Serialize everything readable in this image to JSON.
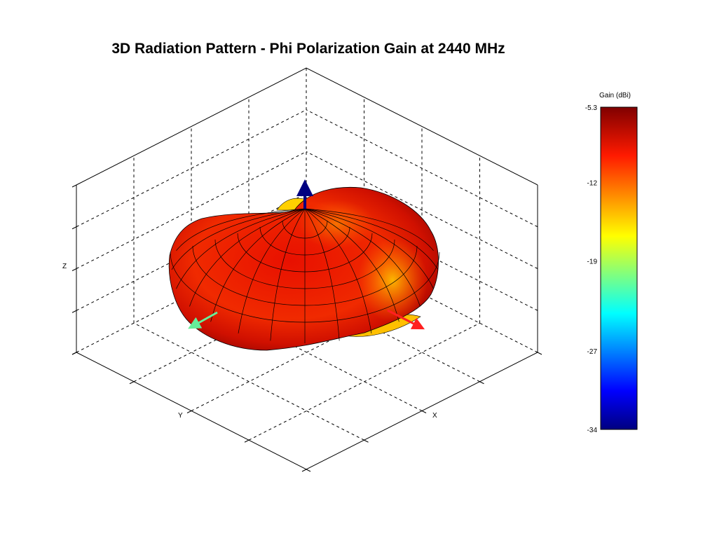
{
  "chart_data": {
    "type": "surface",
    "title": "3D Radiation Pattern - Phi Polarization Gain at 2440 MHz",
    "xlabel": "X",
    "ylabel": "Y",
    "zlabel": "Z",
    "grid": true,
    "colorbar": {
      "title": "Gain (dBi)",
      "range": [
        -34,
        -5.3
      ],
      "ticks": [
        "-5.3",
        "-12",
        "-19",
        "-27",
        "-34"
      ],
      "tick_values": [
        -5.3,
        -12,
        -19,
        -27,
        -34
      ],
      "colormap": "jet",
      "placement": "right"
    },
    "axis_arrows": {
      "x": "#ff2020",
      "y": "#66ee99",
      "z": "#000080"
    }
  }
}
